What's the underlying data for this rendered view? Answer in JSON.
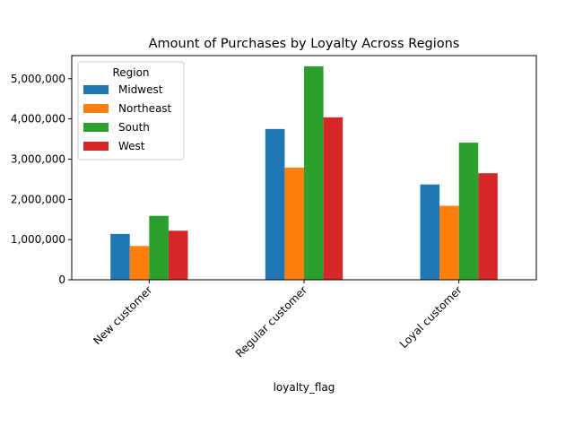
{
  "chart_data": {
    "type": "bar",
    "title": "Amount of Purchases by Loyalty Across Regions",
    "xlabel": "loyalty_flag",
    "ylabel": "",
    "categories": [
      "New customer",
      "Regular customer",
      "Loyal customer"
    ],
    "series": [
      {
        "name": "Midwest",
        "color": "#1f77b4",
        "values": [
          1140000,
          3750000,
          2370000
        ]
      },
      {
        "name": "Northeast",
        "color": "#ff7f0e",
        "values": [
          840000,
          2790000,
          1840000
        ]
      },
      {
        "name": "South",
        "color": "#2ca02c",
        "values": [
          1590000,
          5310000,
          3410000
        ]
      },
      {
        "name": "West",
        "color": "#d62728",
        "values": [
          1220000,
          4040000,
          2650000
        ]
      }
    ],
    "ylim": [
      0,
      5575000
    ],
    "yticks": [
      0,
      1000000,
      2000000,
      3000000,
      4000000,
      5000000
    ],
    "ytick_labels": [
      "0",
      "1,000,000",
      "2,000,000",
      "3,000,000",
      "4,000,000",
      "5,000,000"
    ],
    "legend": {
      "title": "Region",
      "placement": "top-left"
    },
    "grid": false
  }
}
